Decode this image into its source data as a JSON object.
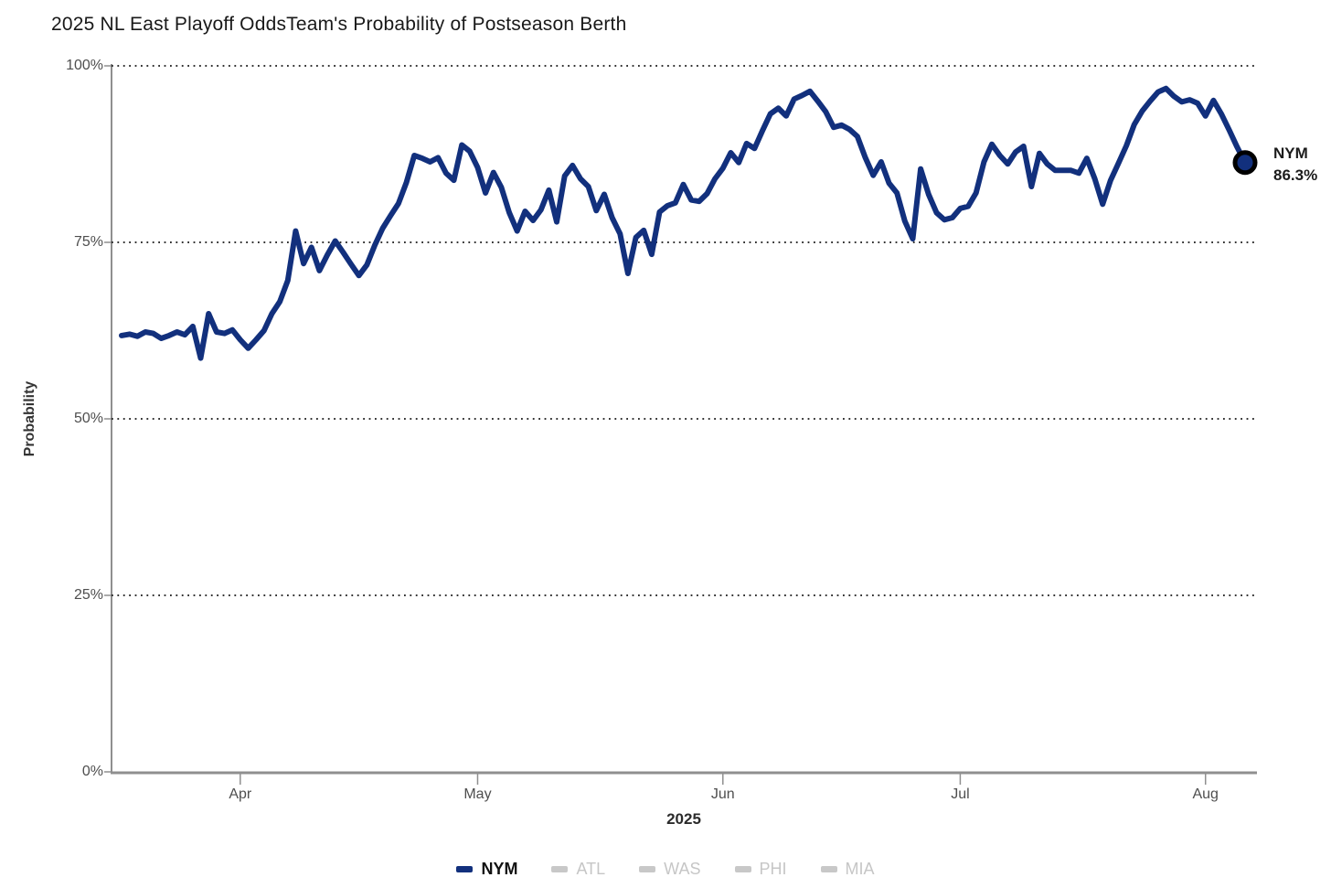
{
  "header": {
    "title": "2025 NL East Playoff Odds",
    "subtitle": "Team's Probability of Postseason Berth"
  },
  "chart_data": {
    "type": "line",
    "title": "2025 NL East Playoff Odds",
    "subtitle": "Team's Probability of Postseason Berth",
    "xlabel": "2025",
    "ylabel": "Probability",
    "x_start_date": "2025-03-17",
    "x_end_date": "2025-08-06",
    "frequency": "daily",
    "ylim": [
      0,
      100
    ],
    "grid": "horizontal-dotted",
    "legend_position": "bottom",
    "y_ticks": [
      {
        "label": "100%",
        "value": 100
      },
      {
        "label": "75%",
        "value": 75
      },
      {
        "label": "50%",
        "value": 50
      },
      {
        "label": "25%",
        "value": 25
      },
      {
        "label": "0%",
        "value": 0
      }
    ],
    "x_ticks": [
      {
        "label": "Apr",
        "day_index": 15
      },
      {
        "label": "May",
        "day_index": 45
      },
      {
        "label": "Jun",
        "day_index": 76
      },
      {
        "label": "Jul",
        "day_index": 106
      },
      {
        "label": "Aug",
        "day_index": 137
      }
    ],
    "series": [
      {
        "name": "NYM",
        "color": "#12307d",
        "active": true,
        "values": [
          61.8,
          62,
          61.7,
          62.3,
          62.1,
          61.4,
          61.8,
          62.3,
          61.9,
          63.1,
          58.6,
          64.9,
          62.3,
          62.1,
          62.6,
          61.2,
          60,
          61.2,
          62.5,
          64.9,
          66.6,
          69.6,
          76.6,
          72,
          74.3,
          71,
          73.2,
          75.2,
          73.6,
          71.9,
          70.3,
          71.8,
          74.6,
          77,
          78.8,
          80.5,
          83.5,
          87.3,
          86.9,
          86.4,
          87,
          84.8,
          83.8,
          88.8,
          87.9,
          85.6,
          82,
          84.9,
          82.8,
          79.2,
          76.6,
          79.4,
          78.1,
          79.6,
          82.4,
          77.9,
          84.4,
          85.9,
          84,
          82.9,
          79.5,
          81.8,
          78.5,
          76.2,
          70.6,
          75.7,
          76.7,
          73.3,
          79.3,
          80.2,
          80.6,
          83.2,
          81,
          80.8,
          81.9,
          84,
          85.5,
          87.7,
          86.3,
          89,
          88.3,
          90.8,
          93.2,
          94,
          92.9,
          95.3,
          95.8,
          96.4,
          95,
          93.5,
          91.3,
          91.6,
          91,
          90,
          87,
          84.5,
          86.4,
          83.4,
          82,
          78,
          75.5,
          85.4,
          81.8,
          79.2,
          78.2,
          78.5,
          79.8,
          80.1,
          82,
          86.4,
          88.9,
          87.3,
          86.1,
          87.8,
          88.6,
          82.9,
          87.6,
          86.1,
          85.2,
          85.2,
          85.2,
          84.8,
          86.9,
          84,
          80.4,
          83.8,
          86.2,
          88.7,
          91.7,
          93.6,
          95,
          96.3,
          96.8,
          95.7,
          94.9,
          95.2,
          94.7,
          92.9,
          95.1,
          93.2,
          90.9,
          88.5,
          86.3
        ]
      },
      {
        "name": "ATL",
        "color": "#c8c8c8",
        "active": false,
        "values": []
      },
      {
        "name": "WAS",
        "color": "#c8c8c8",
        "active": false,
        "values": []
      },
      {
        "name": "PHI",
        "color": "#c8c8c8",
        "active": false,
        "values": []
      },
      {
        "name": "MIA",
        "color": "#c8c8c8",
        "active": false,
        "values": []
      }
    ],
    "annotation": {
      "team": "NYM",
      "value": "86.3%"
    }
  },
  "colors": {
    "nym_line": "#12307d",
    "endpoint_ring": "#000000",
    "axis": "#8f8f8f",
    "gridline": "#151515",
    "tick_label": "#4e4e4e",
    "inactive_legend": "#c6c6c6"
  }
}
